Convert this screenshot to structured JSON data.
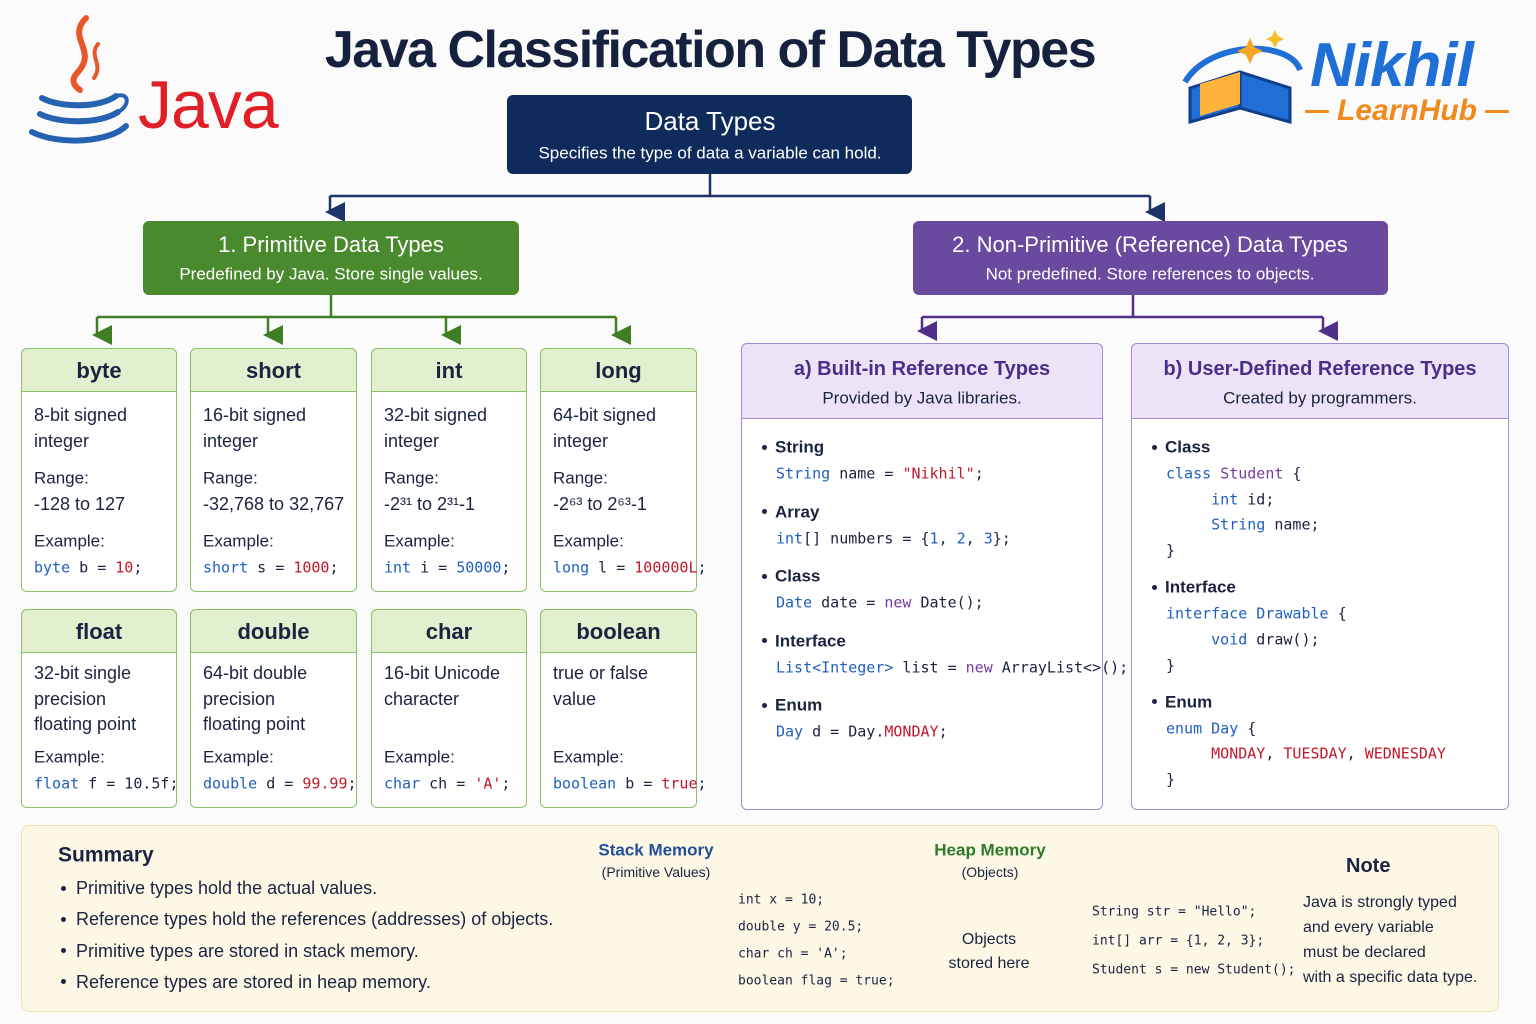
{
  "title": "Java Classification of Data Types",
  "logo_left": "Java",
  "logo_right": {
    "name": "Nikhil",
    "sub": "LearnHub"
  },
  "palette": {
    "k": "#1f5fbf",
    "d": "#1a2340",
    "r": "#c0182a",
    "p": "#7a3aa0"
  },
  "root": {
    "title": "Data Types",
    "subtitle": "Specifies the type of data a variable can hold."
  },
  "primitive": {
    "title": "1. Primitive Data Types",
    "subtitle": "Predefined by Java. Store single values.",
    "labels": {
      "range": "Range:",
      "example": "Example:"
    },
    "types": [
      {
        "name": "byte",
        "desc": [
          "8-bit signed",
          "integer"
        ],
        "range": "-128 to 127",
        "example": [
          [
            "byte",
            "k"
          ],
          [
            " b = ",
            "d"
          ],
          [
            "10",
            "r"
          ],
          [
            ";",
            "d"
          ]
        ]
      },
      {
        "name": "short",
        "desc": [
          "16-bit signed",
          "integer"
        ],
        "range": "-32,768 to 32,767",
        "example": [
          [
            "short",
            "k"
          ],
          [
            " s = ",
            "d"
          ],
          [
            "1000",
            "r"
          ],
          [
            ";",
            "d"
          ]
        ]
      },
      {
        "name": "int",
        "desc": [
          "32-bit signed",
          "integer"
        ],
        "range": "-2³¹ to 2³¹-1",
        "example": [
          [
            "int",
            "k"
          ],
          [
            " i = ",
            "d"
          ],
          [
            "50000",
            "k"
          ],
          [
            ";",
            "d"
          ]
        ]
      },
      {
        "name": "long",
        "desc": [
          "64-bit signed",
          "integer"
        ],
        "range": "-2⁶³ to 2⁶³-1",
        "example": [
          [
            "long",
            "k"
          ],
          [
            " l = ",
            "d"
          ],
          [
            "100000L",
            "r"
          ],
          [
            ";",
            "d"
          ]
        ]
      },
      {
        "name": "float",
        "desc": [
          "32-bit single",
          "precision",
          "floating point"
        ],
        "example": [
          [
            "float",
            "k"
          ],
          [
            " f = 10.5f;",
            "d"
          ]
        ]
      },
      {
        "name": "double",
        "desc": [
          "64-bit double",
          "precision",
          "floating point"
        ],
        "example": [
          [
            "double",
            "k"
          ],
          [
            " d = ",
            "d"
          ],
          [
            "99.99",
            "r"
          ],
          [
            ";",
            "d"
          ]
        ]
      },
      {
        "name": "char",
        "desc": [
          "16-bit Unicode",
          "character"
        ],
        "example": [
          [
            "char",
            "k"
          ],
          [
            " ch = ",
            "d"
          ],
          [
            "'A'",
            "r"
          ],
          [
            ";",
            "d"
          ]
        ]
      },
      {
        "name": "boolean",
        "desc": [
          "true or false",
          "value"
        ],
        "example": [
          [
            "boolean",
            "k"
          ],
          [
            " b = ",
            "d"
          ],
          [
            "true",
            "r"
          ],
          [
            ";",
            "d"
          ]
        ]
      }
    ]
  },
  "non_primitive": {
    "title": "2. Non-Primitive (Reference) Data Types",
    "subtitle": "Not predefined. Store references to objects.",
    "built_in": {
      "title": "a) Built-in Reference Types",
      "subtitle": "Provided by Java libraries.",
      "items": [
        {
          "name": "String",
          "code": [
            [
              [
                "String",
                "k"
              ],
              [
                " name = ",
                "d"
              ],
              [
                "\"Nikhil\"",
                "r"
              ],
              [
                ";",
                "d"
              ]
            ]
          ]
        },
        {
          "name": "Array",
          "code": [
            [
              [
                "int",
                "k"
              ],
              [
                "[] numbers = {",
                "d"
              ],
              [
                "1",
                "k"
              ],
              [
                ", ",
                "d"
              ],
              [
                "2",
                "k"
              ],
              [
                ", ",
                "d"
              ],
              [
                "3",
                "k"
              ],
              [
                "};",
                "d"
              ]
            ]
          ]
        },
        {
          "name": "Class",
          "code": [
            [
              [
                "Date",
                "k"
              ],
              [
                " date = ",
                "d"
              ],
              [
                "new",
                "p"
              ],
              [
                " Date();",
                "d"
              ]
            ]
          ]
        },
        {
          "name": "Interface",
          "code": [
            [
              [
                "List<Integer>",
                "k"
              ],
              [
                " list = ",
                "d"
              ],
              [
                "new",
                "p"
              ],
              [
                " ArrayList<>();",
                "d"
              ]
            ]
          ]
        },
        {
          "name": "Enum",
          "code": [
            [
              [
                "Day",
                "k"
              ],
              [
                " d = Day.",
                "d"
              ],
              [
                "MONDAY",
                "r"
              ],
              [
                ";",
                "d"
              ]
            ]
          ]
        }
      ]
    },
    "user_defined": {
      "title": "b) User-Defined Reference Types",
      "subtitle": "Created by programmers.",
      "items": [
        {
          "name": "Class",
          "code": [
            [
              [
                "class",
                "k"
              ],
              [
                " ",
                "d"
              ],
              [
                "Student",
                "p"
              ],
              [
                " {",
                "d"
              ]
            ],
            [
              [
                "     int",
                "k"
              ],
              [
                " id;",
                "d"
              ]
            ],
            [
              [
                "     String",
                "k"
              ],
              [
                " name;",
                "d"
              ]
            ],
            [
              [
                "}",
                "d"
              ]
            ]
          ]
        },
        {
          "name": "Interface",
          "code": [
            [
              [
                "interface Drawable",
                "k"
              ],
              [
                " {",
                "d"
              ]
            ],
            [
              [
                "     void",
                "k"
              ],
              [
                " draw();",
                "d"
              ]
            ],
            [
              [
                "}",
                "d"
              ]
            ]
          ]
        },
        {
          "name": "Enum",
          "code": [
            [
              [
                "enum",
                "k"
              ],
              [
                " ",
                "d"
              ],
              [
                "Day",
                "k"
              ],
              [
                " {",
                "d"
              ]
            ],
            [
              [
                "     MONDAY",
                "r"
              ],
              [
                ", ",
                "d"
              ],
              [
                "TUESDAY",
                "r"
              ],
              [
                ", ",
                "d"
              ],
              [
                "WEDNESDAY",
                "r"
              ]
            ],
            [
              [
                "}",
                "d"
              ]
            ]
          ]
        }
      ]
    }
  },
  "summary": {
    "title": "Summary",
    "points": [
      "Primitive types hold the actual values.",
      "Reference types hold the references (addresses) of objects.",
      "Primitive types are stored in stack memory.",
      "Reference types are stored in heap memory."
    ]
  },
  "stack": {
    "title": "Stack Memory",
    "subtitle": "(Primitive Values)",
    "code": [
      "int x = 10;",
      "double y = 20.5;",
      "char ch = 'A';",
      "boolean flag = true;"
    ]
  },
  "heap": {
    "title": "Heap Memory",
    "subtitle": "(Objects)",
    "label": [
      "Objects",
      "stored here"
    ],
    "code": [
      "String str = \"Hello\";",
      "int[] arr = {1, 2, 3};",
      "Student s = new Student();"
    ]
  },
  "note": {
    "title": "Note",
    "lines": [
      "Java is strongly typed",
      "and every variable",
      "must be declared",
      "with a specific data type."
    ]
  }
}
